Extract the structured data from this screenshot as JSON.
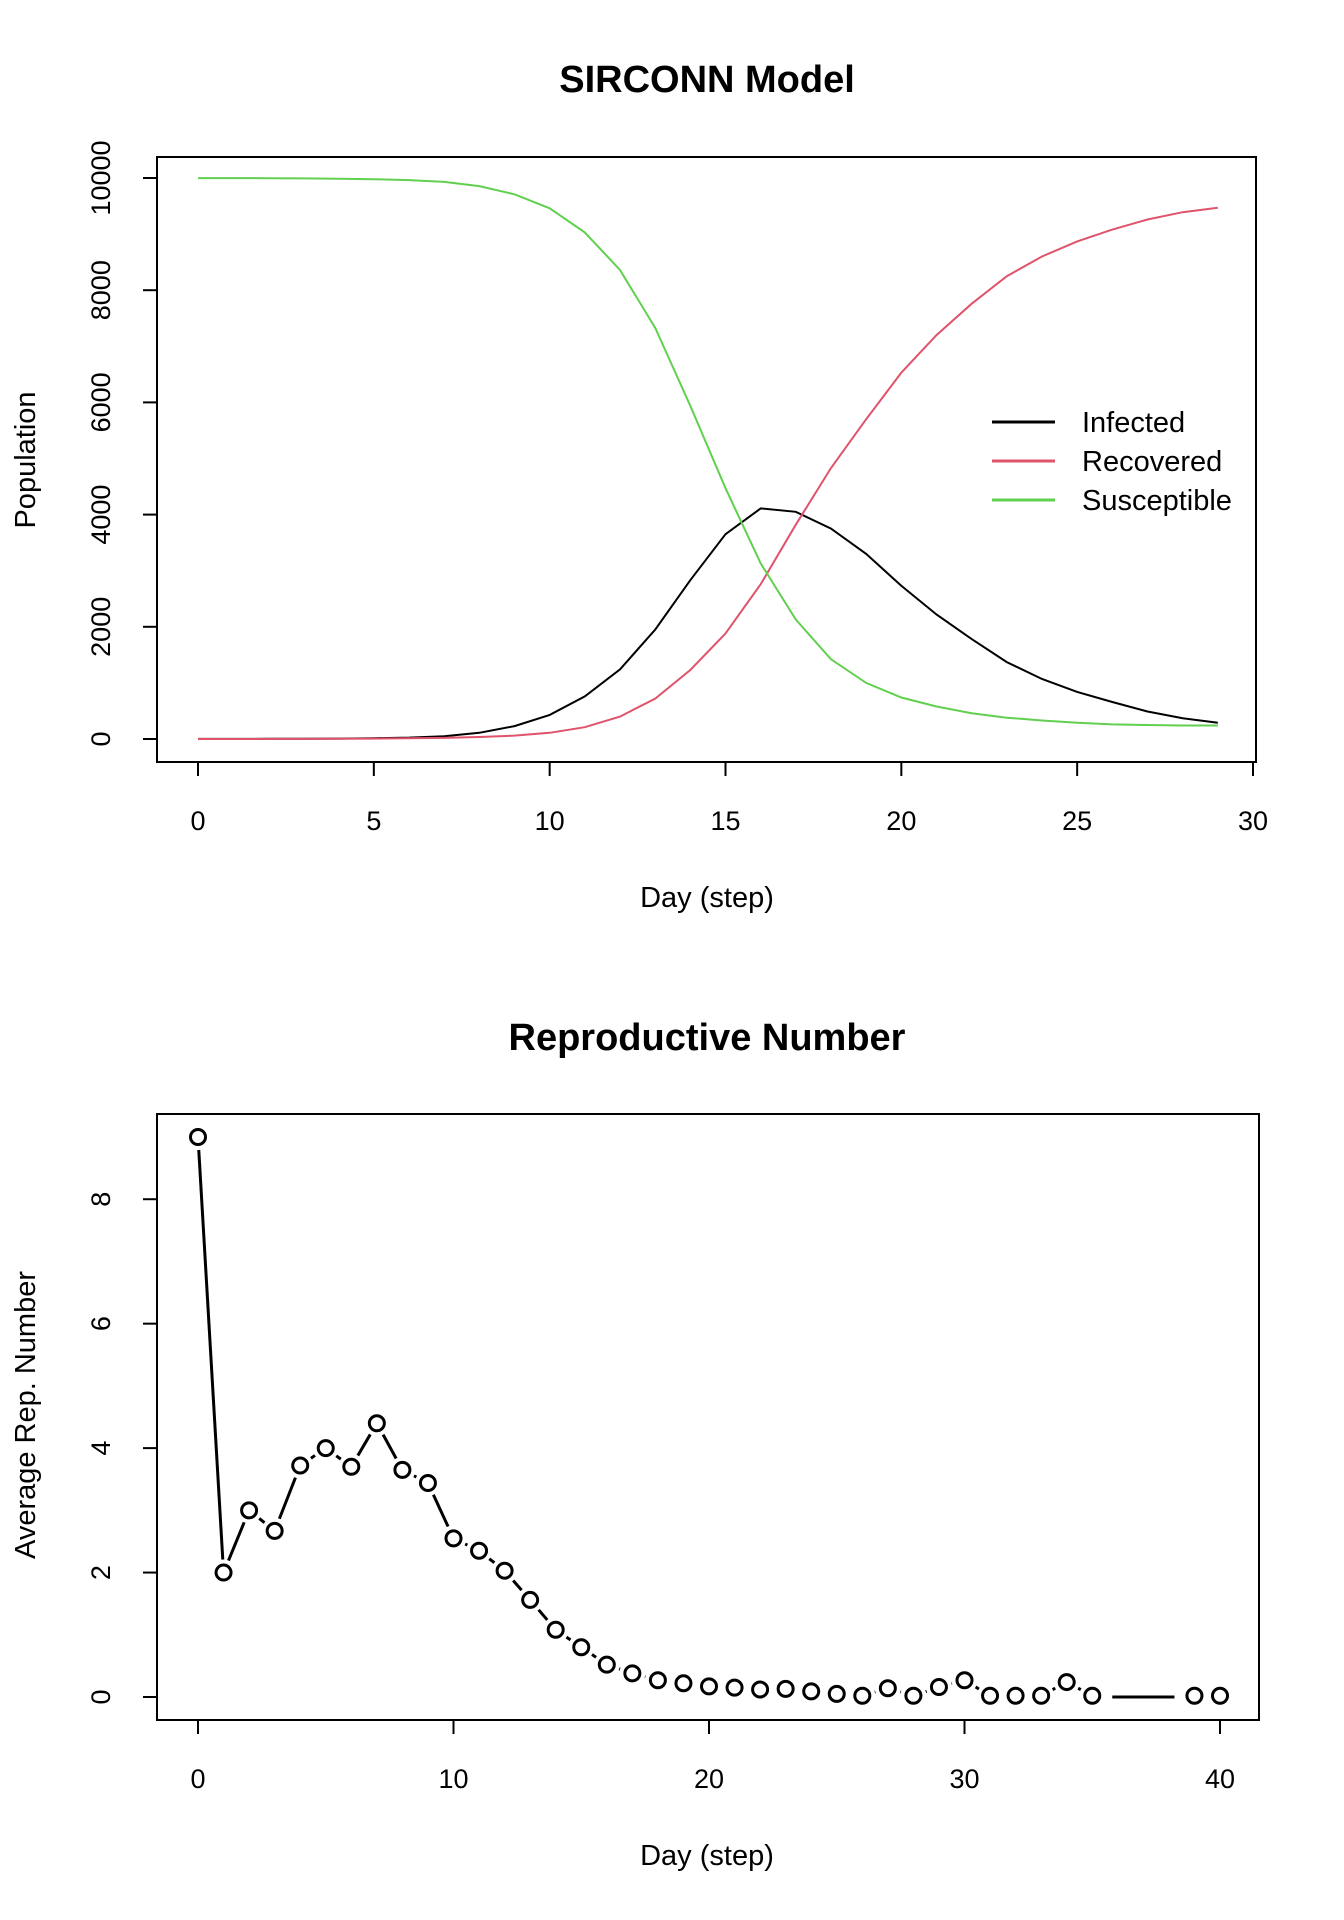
{
  "chart_data": [
    {
      "type": "line",
      "title": "SIRCONN Model",
      "xlabel": "Day (step)",
      "ylabel": "Population",
      "xlim": [
        0,
        30
      ],
      "ylim": [
        0,
        10000
      ],
      "xticks": [
        0,
        5,
        10,
        15,
        20,
        25,
        30
      ],
      "yticks": [
        0,
        2000,
        4000,
        6000,
        8000,
        10000
      ],
      "legend_position": "right",
      "x": [
        0,
        1,
        2,
        3,
        4,
        5,
        6,
        7,
        8,
        9,
        10,
        11,
        12,
        13,
        14,
        15,
        16,
        17,
        18,
        19,
        20,
        21,
        22,
        23,
        24,
        25,
        26,
        27,
        28,
        29
      ],
      "series": [
        {
          "name": "Infected",
          "color": "#000000",
          "values": [
            1,
            2,
            3,
            5,
            8,
            14,
            25,
            50,
            110,
            230,
            430,
            760,
            1240,
            1950,
            2830,
            3650,
            4110,
            4050,
            3750,
            3300,
            2730,
            2220,
            1780,
            1370,
            1070,
            840,
            660,
            490,
            370,
            290
          ]
        },
        {
          "name": "Recovered",
          "color": "#DF536B",
          "values": [
            0,
            0,
            1,
            2,
            4,
            7,
            12,
            20,
            35,
            60,
            110,
            210,
            400,
            720,
            1230,
            1880,
            2760,
            3820,
            4830,
            5700,
            6530,
            7200,
            7760,
            8250,
            8600,
            8870,
            9080,
            9260,
            9390,
            9470
          ]
        },
        {
          "name": "Susceptible",
          "color": "#61D04F",
          "values": [
            9999,
            9998,
            9996,
            9993,
            9988,
            9979,
            9963,
            9930,
            9855,
            9710,
            9460,
            9030,
            8360,
            7330,
            5940,
            4470,
            3130,
            2130,
            1420,
            1000,
            740,
            580,
            460,
            380,
            330,
            290,
            260,
            250,
            240,
            240
          ]
        }
      ]
    },
    {
      "type": "scatter",
      "title": "Reproductive Number",
      "xlabel": "Day (step)",
      "ylabel": "Average Rep. Number",
      "xlim": [
        0,
        40
      ],
      "ylim": [
        0,
        9
      ],
      "xticks": [
        0,
        10,
        20,
        30,
        40
      ],
      "yticks": [
        0,
        2,
        4,
        6,
        8
      ],
      "markers": "open-circle",
      "connected": true,
      "x": [
        0,
        1,
        2,
        3,
        4,
        5,
        6,
        7,
        8,
        9,
        10,
        11,
        12,
        13,
        14,
        15,
        16,
        17,
        18,
        19,
        20,
        21,
        22,
        23,
        24,
        25,
        26,
        27,
        28,
        29,
        30,
        31,
        32,
        33,
        34,
        35,
        36,
        37,
        38,
        39,
        40
      ],
      "y": [
        9,
        2,
        3,
        2.67,
        3.72,
        4,
        3.7,
        4.4,
        3.65,
        3.44,
        2.55,
        2.35,
        2.03,
        1.56,
        1.08,
        0.8,
        0.52,
        0.38,
        0.27,
        0.22,
        0.17,
        0.15,
        0.12,
        0.13,
        0.09,
        0.05,
        0.02,
        0.14,
        0.02,
        0.16,
        0.27,
        0.02,
        0.02,
        0.02,
        0.24,
        0.02,
        null,
        null,
        null,
        0.02,
        0.02
      ],
      "missing_segment": {
        "from_x": 35,
        "to_x": 39,
        "y": 0
      }
    }
  ]
}
